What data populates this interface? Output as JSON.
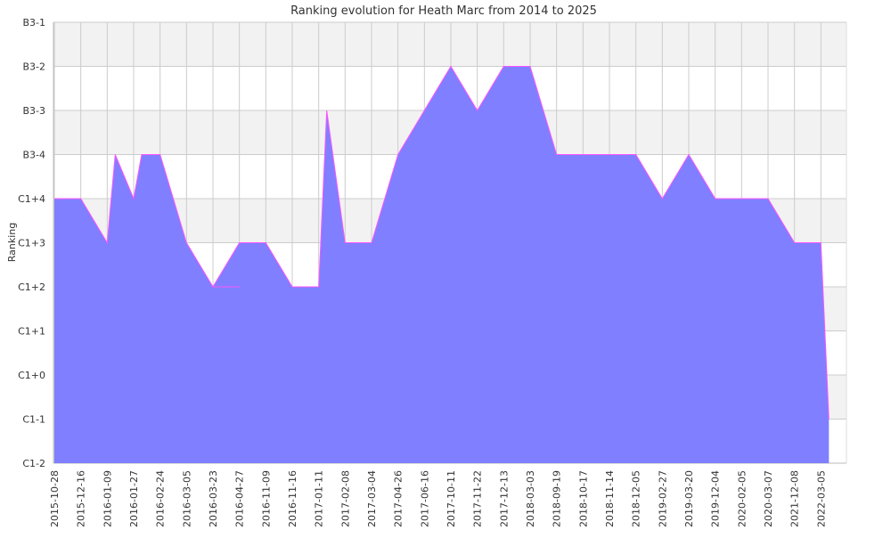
{
  "chart_data": {
    "type": "area",
    "title": "Ranking evolution for Heath Marc from 2014 to 2025",
    "xlabel": "",
    "ylabel": "Ranking",
    "y_ticks": [
      "C1-2",
      "C1-1",
      "C1+0",
      "C1+1",
      "C1+2",
      "C1+3",
      "C1+4",
      "B3-4",
      "B3-3",
      "B3-2",
      "B3-1"
    ],
    "x_ticks": [
      "2015-10-28",
      "2015-12-16",
      "2016-01-09",
      "2016-01-27",
      "2016-02-24",
      "2016-03-05",
      "2016-03-23",
      "2016-04-27",
      "2016-11-09",
      "2016-11-16",
      "2017-01-11",
      "2017-02-08",
      "2017-03-04",
      "2017-04-26",
      "2017-06-16",
      "2017-10-11",
      "2017-11-22",
      "2017-12-13",
      "2018-03-03",
      "2018-09-19",
      "2018-10-17",
      "2018-11-14",
      "2018-12-05",
      "2019-02-27",
      "2019-03-20",
      "2019-12-04",
      "2020-02-05",
      "2020-03-07",
      "2021-12-08",
      "2022-03-05"
    ],
    "series": [
      {
        "values": [
          [
            "2015-10-28",
            "C1+4"
          ],
          [
            "2015-12-16",
            "C1+4"
          ],
          [
            "2016-01-09",
            "C1+3"
          ],
          [
            "2016-01-09",
            "B3-4"
          ],
          [
            "2016-01-27",
            "C1+4"
          ],
          [
            "2016-01-27",
            "B3-4"
          ],
          [
            "2016-02-24",
            "B3-4"
          ],
          [
            "2016-03-05",
            "C1+3"
          ],
          [
            "2016-03-23",
            "C1+2"
          ],
          [
            "2016-04-27",
            "C1+2"
          ],
          [
            "2016-03-23",
            "C1+2"
          ],
          [
            "2016-04-27",
            "C1+3"
          ],
          [
            "2016-11-09",
            "C1+3"
          ],
          [
            "2016-11-16",
            "C1+2"
          ],
          [
            "2017-01-11",
            "C1+2"
          ],
          [
            "2017-01-11",
            "B3-3"
          ],
          [
            "2017-02-08",
            "C1+3"
          ],
          [
            "2017-03-04",
            "C1+3"
          ],
          [
            "2017-04-26",
            "B3-4"
          ],
          [
            "2017-06-16",
            "B3-3"
          ],
          [
            "2017-10-11",
            "B3-2"
          ],
          [
            "2017-11-22",
            "B3-3"
          ],
          [
            "2017-12-13",
            "B3-2"
          ],
          [
            "2018-03-03",
            "B3-2"
          ],
          [
            "2018-09-19",
            "B3-4"
          ],
          [
            "2018-12-05",
            "B3-4"
          ],
          [
            "2019-02-27",
            "C1+4"
          ],
          [
            "2019-03-20",
            "B3-4"
          ],
          [
            "2019-12-04",
            "C1+4"
          ],
          [
            "2020-03-07",
            "C1+4"
          ],
          [
            "2021-12-08",
            "C1+3"
          ],
          [
            "2022-03-05",
            "C1+3"
          ],
          [
            "2022-03-05",
            "C1-1"
          ]
        ]
      }
    ],
    "grid": true,
    "colors": {
      "fill": "#7f7fff",
      "line": "#ff55ff",
      "band": "#f2f2f2",
      "grid": "#cccccc",
      "axis": "#bbbbbb"
    }
  }
}
